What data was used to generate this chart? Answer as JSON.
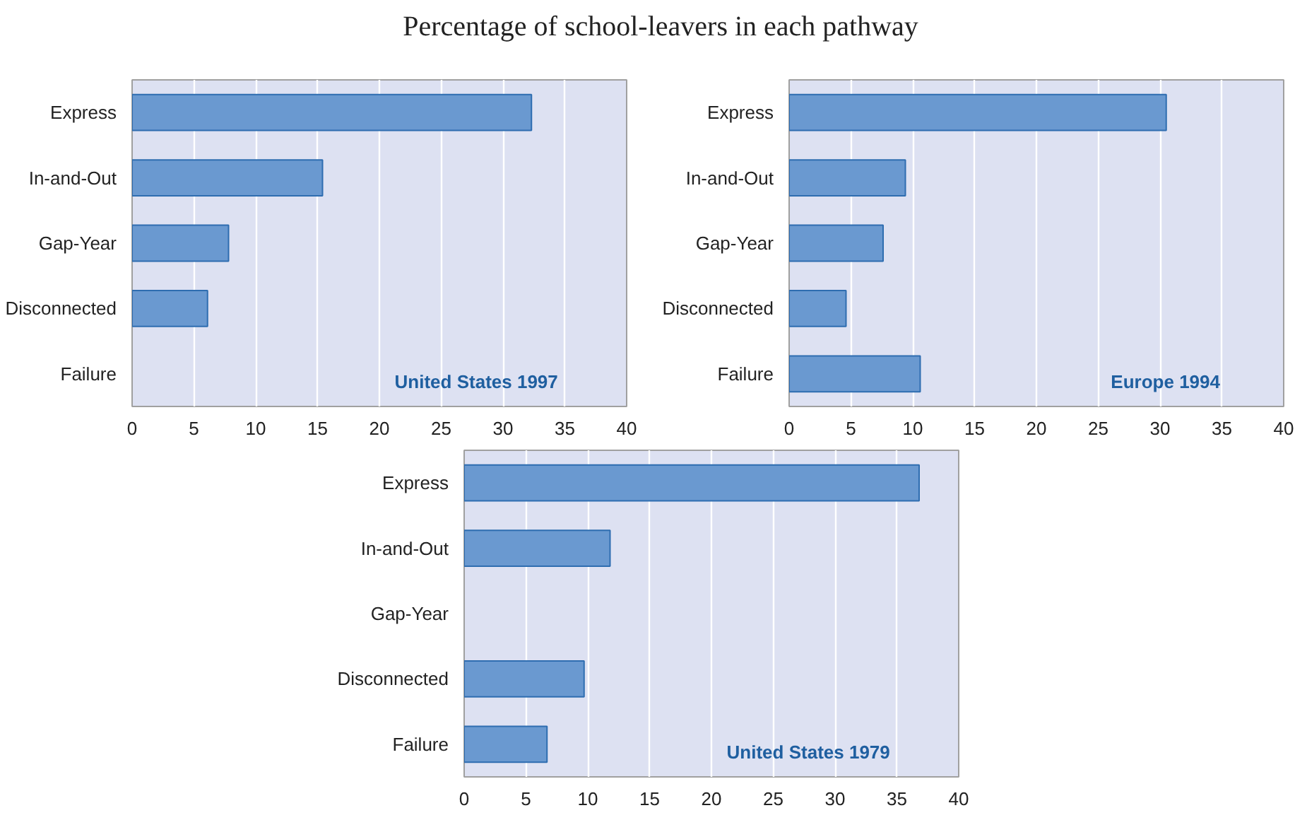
{
  "chart_data": [
    {
      "type": "bar",
      "orientation": "horizontal",
      "title": "Percentage of school-leavers in each pathway",
      "categories": [
        "Express",
        "In-and-Out",
        "Gap-Year",
        "Disconnected",
        "Failure"
      ],
      "values": [
        32.3,
        15.4,
        7.8,
        6.1,
        null
      ],
      "color": "#6a99d0",
      "xlim": [
        0,
        40
      ],
      "xticks": [
        0,
        5,
        10,
        15,
        20,
        25,
        30,
        35,
        40
      ],
      "grid": "x",
      "annotations": [
        "United States  1997"
      ]
    },
    {
      "type": "bar",
      "orientation": "horizontal",
      "categories": [
        "Express",
        "In-and-Out",
        "Gap-Year",
        "Disconnected",
        "Failure"
      ],
      "values": [
        30.5,
        9.4,
        7.6,
        4.6,
        10.6
      ],
      "color": "#6a99d0",
      "xlim": [
        0,
        40
      ],
      "xticks": [
        0,
        5,
        10,
        15,
        20,
        25,
        30,
        35,
        40
      ],
      "grid": "x",
      "annotations": [
        "Europe 1994"
      ]
    },
    {
      "type": "bar",
      "orientation": "horizontal",
      "categories": [
        "Express",
        "In-and-Out",
        "Gap-Year",
        "Disconnected",
        "Failure"
      ],
      "values": [
        36.8,
        11.8,
        null,
        9.7,
        6.7
      ],
      "color": "#6a99d0",
      "xlim": [
        0,
        40
      ],
      "xticks": [
        0,
        5,
        10,
        15,
        20,
        25,
        30,
        35,
        40
      ],
      "grid": "x",
      "annotations": [
        "United States  1979"
      ]
    }
  ]
}
